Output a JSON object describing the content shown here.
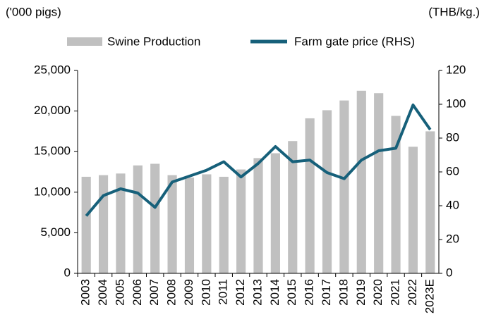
{
  "chart_data": {
    "type": "bar_line",
    "y_label": "('000 pigs)",
    "y2_label": "(THB/kg.)",
    "categories": [
      "2003",
      "2004",
      "2005",
      "2006",
      "2007",
      "2008",
      "2009",
      "2010",
      "2011",
      "2012",
      "2013",
      "2014",
      "2015",
      "2016",
      "2017",
      "2018",
      "2019",
      "2020",
      "2021",
      "2022",
      "2023E"
    ],
    "series": [
      {
        "name": "Swine Production",
        "type": "bar",
        "color": "#c0c0c0",
        "values": [
          11900,
          12100,
          12300,
          13300,
          13500,
          12100,
          11800,
          12200,
          11900,
          12800,
          14200,
          14800,
          16300,
          19100,
          20100,
          21300,
          22500,
          22200,
          19400,
          15600,
          17500
        ]
      },
      {
        "name": "Farm gate price (RHS)",
        "type": "line",
        "axis": "y2",
        "color": "#16607a",
        "values": [
          34,
          46,
          50,
          47.5,
          39,
          54,
          57.5,
          61,
          66,
          57,
          65,
          75,
          66,
          67,
          59.6,
          56,
          67,
          72.5,
          74,
          99.6,
          85
        ]
      }
    ],
    "ylim": [
      0,
      25000
    ],
    "yticks": [
      0,
      {
        "value": 5000,
        "label": "5,000"
      },
      {
        "value": 10000,
        "label": "10,000"
      },
      {
        "value": 15000,
        "label": "15,000"
      },
      {
        "value": 20000,
        "label": "20,000"
      },
      {
        "value": 25000,
        "label": "25,000"
      }
    ],
    "y2lim": [
      0,
      120
    ],
    "y2ticks": [
      0,
      20,
      40,
      60,
      80,
      100,
      120
    ]
  }
}
